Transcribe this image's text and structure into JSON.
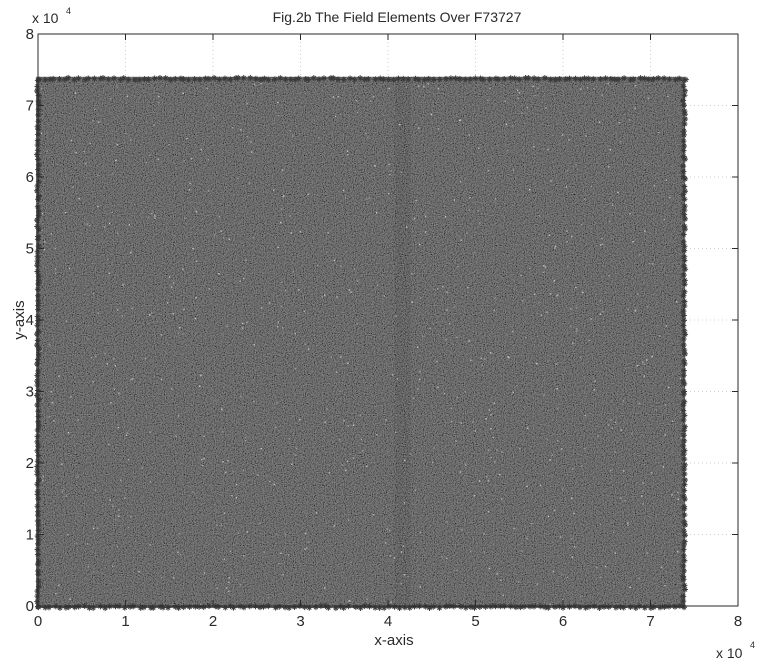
{
  "chart_data": {
    "type": "scatter",
    "title": "Fig.2b The Field Elements Over F73727",
    "xlabel": "x-axis",
    "ylabel": "y-axis",
    "xlim": [
      0,
      80000
    ],
    "ylim": [
      0,
      80000
    ],
    "x_tick_labels": [
      "0",
      "1",
      "2",
      "3",
      "4",
      "5",
      "6",
      "7",
      "8"
    ],
    "y_tick_labels": [
      "0",
      "1",
      "2",
      "3",
      "4",
      "5",
      "6",
      "7",
      "8"
    ],
    "x_multiplier": {
      "base": "x 10",
      "exponent": "4"
    },
    "y_multiplier": {
      "base": "x 10",
      "exponent": "4"
    },
    "grid": true,
    "marker": "*",
    "field_modulus": 73727,
    "points_extent": {
      "x": [
        0,
        73727
      ],
      "y": [
        0,
        73727
      ]
    },
    "colors": {
      "points": "#3a3a3a",
      "points_dark": "#1c1c1c",
      "speckle": "#d8d8d8",
      "axes": "#2a2a2a",
      "grid": "#cfcfcf",
      "background": "#ffffff"
    }
  }
}
